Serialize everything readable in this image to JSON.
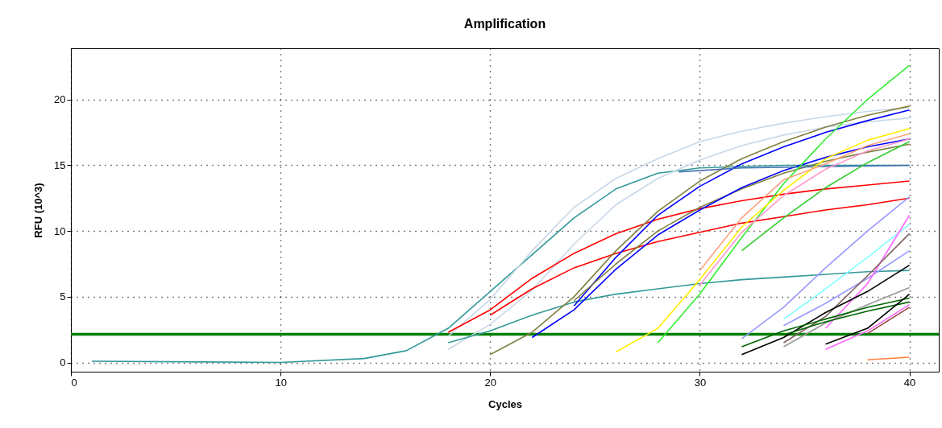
{
  "chart_data": {
    "type": "line",
    "title": "Amplification",
    "xlabel": "Cycles",
    "ylabel": "RFU (10^3)",
    "x": [
      1,
      10,
      14,
      16,
      18,
      20,
      22,
      24,
      26,
      28,
      30,
      32,
      34,
      36,
      38,
      40
    ],
    "xlim": [
      0,
      41.4
    ],
    "xticks": [
      0,
      10,
      20,
      30,
      40
    ],
    "ylim": [
      -0.7,
      23.9
    ],
    "yticks": [
      0,
      5,
      10,
      15,
      20
    ],
    "grid": true,
    "legend": false,
    "ref_lines": [
      {
        "axis": "y",
        "value": 2.14,
        "color": "#008000"
      }
    ],
    "series": [
      {
        "color": "#339999",
        "values": [
          0.1,
          0,
          0.3,
          0.9,
          2.6,
          5.4,
          8.2,
          11,
          13.2,
          14.4,
          14.8,
          14.9,
          15,
          15,
          15,
          15
        ]
      },
      {
        "color": "#c8d8e8",
        "values": [
          null,
          null,
          null,
          null,
          2.0,
          4.8,
          8.5,
          11.8,
          14,
          15.5,
          16.8,
          17.6,
          18.2,
          18.7,
          19.1,
          19.4
        ]
      },
      {
        "color": "#c8d8e8",
        "values": [
          null,
          null,
          null,
          null,
          1.0,
          2.9,
          5.5,
          9,
          12,
          14,
          15.4,
          16.5,
          17.3,
          17.9,
          18.3,
          18.6
        ]
      },
      {
        "color": "#ff0000",
        "values": [
          null,
          null,
          null,
          null,
          2.3,
          4.0,
          6.4,
          8.3,
          9.8,
          10.9,
          11.7,
          12.3,
          12.8,
          13.2,
          13.5,
          13.8
        ]
      },
      {
        "color": "#ff0000",
        "values": [
          null,
          null,
          null,
          null,
          null,
          3.6,
          5.6,
          7.2,
          8.3,
          9.2,
          9.9,
          10.6,
          11.1,
          11.6,
          12.0,
          12.5
        ]
      },
      {
        "color": "#339999",
        "values": [
          null,
          null,
          null,
          null,
          1.5,
          2.4,
          3.6,
          4.6,
          5.2,
          5.6,
          6.0,
          6.3,
          6.5,
          6.7,
          6.9,
          7.0
        ]
      },
      {
        "color": "#808040",
        "values": [
          null,
          null,
          null,
          null,
          null,
          0.6,
          2.3,
          5.0,
          8.5,
          11.5,
          13.8,
          15.5,
          16.8,
          17.9,
          18.8,
          19.5
        ]
      },
      {
        "color": "#0000ff",
        "values": [
          null,
          null,
          null,
          null,
          null,
          null,
          null,
          4.3,
          8.0,
          11.2,
          13.4,
          15.1,
          16.4,
          17.5,
          18.4,
          19.2
        ]
      },
      {
        "color": "#808040",
        "values": [
          null,
          null,
          null,
          null,
          null,
          null,
          null,
          4.7,
          7.5,
          10.0,
          11.8,
          13.2,
          14.4,
          15.3,
          16.0,
          16.6
        ]
      },
      {
        "color": "#0000ff",
        "values": [
          null,
          null,
          null,
          null,
          null,
          null,
          1.9,
          4.0,
          7.1,
          9.7,
          11.6,
          13.3,
          14.6,
          15.6,
          16.4,
          17.0
        ]
      },
      {
        "color": "#4070b0",
        "x": [
          29,
          32,
          36,
          40
        ],
        "values": [
          14.5,
          14.8,
          14.9,
          15
        ]
      },
      {
        "color": "#33ee33",
        "values": [
          null,
          null,
          null,
          null,
          null,
          null,
          null,
          null,
          null,
          1.5,
          5.2,
          9.5,
          13.6,
          17,
          20,
          22.6
        ]
      },
      {
        "color": "#ffee00",
        "values": [
          null,
          null,
          null,
          null,
          null,
          null,
          null,
          null,
          0.8,
          2.6,
          6.3,
          10.3,
          13.1,
          15.5,
          16.9,
          17.8
        ]
      },
      {
        "color": "#ffa080",
        "values": [
          null,
          null,
          null,
          null,
          null,
          null,
          null,
          null,
          null,
          null,
          7.0,
          11.0,
          13.9,
          15.1,
          16.5,
          17.4
        ]
      },
      {
        "color": "#ff99cc",
        "values": [
          null,
          null,
          null,
          null,
          null,
          null,
          null,
          null,
          null,
          null,
          5.9,
          9.9,
          12.7,
          14.7,
          16.1,
          17.0
        ]
      },
      {
        "color": "#33cc33",
        "values": [
          null,
          null,
          null,
          null,
          null,
          null,
          null,
          null,
          null,
          null,
          null,
          8.5,
          11.0,
          13.3,
          15.2,
          16.8
        ]
      },
      {
        "color": "#9999ff",
        "values": [
          null,
          null,
          null,
          null,
          null,
          null,
          null,
          null,
          null,
          null,
          null,
          1.8,
          4.2,
          7.2,
          10.0,
          12.6
        ]
      },
      {
        "color": "#80ffff",
        "values": [
          null,
          null,
          null,
          null,
          null,
          null,
          null,
          null,
          null,
          null,
          null,
          null,
          3.3,
          5.6,
          8.0,
          10.5
        ]
      },
      {
        "color": "#9999ff",
        "values": [
          null,
          null,
          null,
          null,
          null,
          null,
          null,
          null,
          null,
          null,
          null,
          null,
          2.8,
          4.5,
          6.4,
          8.5
        ]
      },
      {
        "color": "#ff66ff",
        "values": [
          null,
          null,
          null,
          null,
          null,
          null,
          null,
          null,
          null,
          null,
          null,
          null,
          null,
          2.6,
          6.0,
          11.2
        ]
      },
      {
        "color": "#806060",
        "values": [
          null,
          null,
          null,
          null,
          null,
          null,
          null,
          null,
          null,
          null,
          null,
          null,
          1.5,
          3.5,
          6.6,
          9.8
        ]
      },
      {
        "color": "#000000",
        "values": [
          null,
          null,
          null,
          null,
          null,
          null,
          null,
          null,
          null,
          null,
          null,
          0.6,
          1.9,
          3.8,
          5.4,
          7.4
        ]
      },
      {
        "color": "#999999",
        "values": [
          null,
          null,
          null,
          null,
          null,
          null,
          null,
          null,
          null,
          null,
          null,
          null,
          1.2,
          3.0,
          4.4,
          5.7
        ]
      },
      {
        "color": "#006600",
        "values": [
          null,
          null,
          null,
          null,
          null,
          null,
          null,
          null,
          null,
          null,
          null,
          1.2,
          2.4,
          3.3,
          4.2,
          4.9
        ]
      },
      {
        "color": "#006600",
        "values": [
          null,
          null,
          null,
          null,
          null,
          null,
          null,
          null,
          null,
          null,
          null,
          null,
          2.1,
          3.1,
          3.9,
          4.6
        ]
      },
      {
        "color": "#000000",
        "values": [
          null,
          null,
          null,
          null,
          null,
          null,
          null,
          null,
          null,
          null,
          null,
          null,
          null,
          1.4,
          2.6,
          5.2
        ]
      },
      {
        "color": "#ff66ff",
        "values": [
          null,
          null,
          null,
          null,
          null,
          null,
          null,
          null,
          null,
          null,
          null,
          null,
          null,
          1.0,
          2.4,
          4.4
        ]
      },
      {
        "color": "#994444",
        "values": [
          null,
          null,
          null,
          null,
          null,
          null,
          null,
          null,
          null,
          null,
          null,
          null,
          null,
          null,
          2.2,
          4.2
        ]
      },
      {
        "color": "#ff8040",
        "values": [
          null,
          null,
          null,
          null,
          null,
          null,
          null,
          null,
          null,
          null,
          null,
          null,
          null,
          null,
          0.2,
          0.4
        ]
      }
    ]
  }
}
